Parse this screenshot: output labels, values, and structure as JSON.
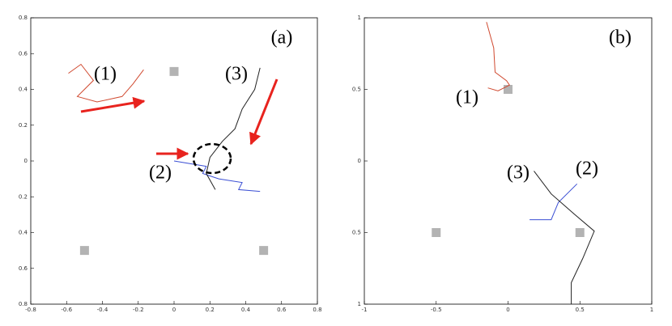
{
  "chart_data": [
    {
      "type": "line",
      "panel_label": "(a)",
      "annotations": [
        "(1)",
        "(2)",
        "(3)"
      ],
      "xlim": [
        -0.8,
        0.8
      ],
      "ylim": [
        -0.8,
        0.8
      ],
      "xticks": [
        -0.8,
        -0.6,
        -0.4,
        -0.2,
        0,
        0.2,
        0.4,
        0.6,
        0.8
      ],
      "yticks": [
        {
          "value": -0.8,
          "label": "0.8"
        },
        {
          "value": -0.6,
          "label": "0.6"
        },
        {
          "value": -0.4,
          "label": "0.4"
        },
        {
          "value": -0.2,
          "label": "0.2"
        },
        0,
        0.2,
        0.4,
        0.6,
        0.8
      ],
      "landmarks": {
        "color": "#b3b3b3",
        "x": [
          0,
          -0.5,
          0.5
        ],
        "values": [
          0.5,
          -0.5,
          -0.5
        ]
      },
      "series": [
        {
          "color": "#d0492f",
          "x": [
            -0.59,
            -0.52,
            -0.45,
            -0.54,
            -0.43,
            -0.29,
            -0.23,
            -0.17
          ],
          "values": [
            0.49,
            0.54,
            0.45,
            0.36,
            0.33,
            0.36,
            0.43,
            0.51
          ]
        },
        {
          "color": "#3b4fd4",
          "x": [
            0,
            0.18,
            0.16,
            0.25,
            0.38,
            0.36,
            0.48
          ],
          "values": [
            0,
            -0.03,
            -0.07,
            -0.1,
            -0.12,
            -0.16,
            -0.17
          ]
        },
        {
          "color": "#222222",
          "x": [
            0.48,
            0.45,
            0.38,
            0.34,
            0.27,
            0.2,
            0.18,
            0.23
          ],
          "values": [
            0.52,
            0.4,
            0.29,
            0.18,
            0.11,
            0.02,
            -0.07,
            -0.16
          ]
        }
      ]
    },
    {
      "type": "line",
      "panel_label": "(b)",
      "annotations": [
        "(1)",
        "(2)",
        "(3)"
      ],
      "xlim": [
        -1,
        1
      ],
      "ylim": [
        -1,
        1
      ],
      "xticks": [
        -1,
        -0.5,
        0,
        0.5,
        1
      ],
      "yticks": [
        {
          "value": -1,
          "label": "1"
        },
        {
          "value": -0.5,
          "label": "0.5"
        },
        0,
        0.5,
        1
      ],
      "landmarks": {
        "color": "#b3b3b3",
        "x": [
          0,
          -0.5,
          0.5
        ],
        "values": [
          0.5,
          -0.5,
          -0.5
        ]
      },
      "series": [
        {
          "color": "#d0492f",
          "x": [
            -0.15,
            -0.1,
            -0.09,
            -0.01,
            0.01,
            -0.07,
            -0.14
          ],
          "values": [
            0.97,
            0.79,
            0.62,
            0.56,
            0.53,
            0.49,
            0.51
          ]
        },
        {
          "color": "#3b4fd4",
          "x": [
            0.15,
            0.3,
            0.35,
            0.48
          ],
          "values": [
            -0.41,
            -0.41,
            -0.29,
            -0.16
          ]
        },
        {
          "color": "#222222",
          "x": [
            0.18,
            0.3,
            0.46,
            0.6,
            0.52,
            0.44,
            0.44
          ],
          "values": [
            -0.07,
            -0.23,
            -0.37,
            -0.49,
            -0.68,
            -0.85,
            -1
          ]
        }
      ]
    }
  ]
}
